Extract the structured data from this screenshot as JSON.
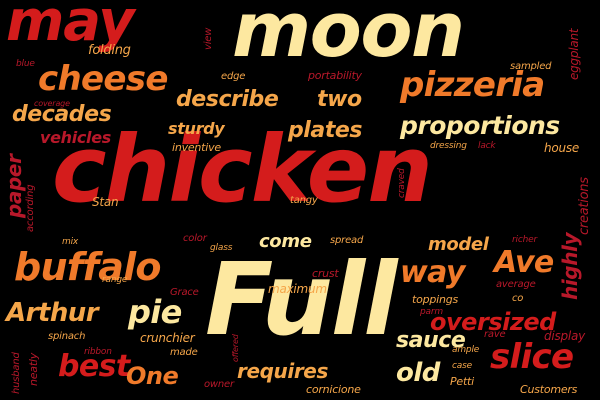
{
  "palette": {
    "red": "#d41c1c",
    "crimson": "#b8182a",
    "orange": "#f07a2a",
    "light_orange": "#f5a64a",
    "cream": "#fde8a0",
    "background": "#000000"
  },
  "words": [
    {
      "text": "may",
      "color": "red"
    },
    {
      "text": "moon",
      "color": "cream"
    },
    {
      "text": "chicken",
      "color": "red"
    },
    {
      "text": "Full",
      "color": "cream"
    },
    {
      "text": "cheese",
      "color": "orange"
    },
    {
      "text": "pizzeria",
      "color": "orange"
    },
    {
      "text": "buffalo",
      "color": "orange"
    },
    {
      "text": "describe",
      "color": "light_orange"
    },
    {
      "text": "two",
      "color": "light_orange"
    },
    {
      "text": "proportions",
      "color": "cream"
    },
    {
      "text": "decades",
      "color": "light_orange"
    },
    {
      "text": "vehicles",
      "color": "crimson"
    },
    {
      "text": "sturdy",
      "color": "light_orange"
    },
    {
      "text": "plates",
      "color": "light_orange"
    },
    {
      "text": "paper",
      "color": "crimson"
    },
    {
      "text": "way",
      "color": "orange"
    },
    {
      "text": "Ave",
      "color": "orange"
    },
    {
      "text": "highly",
      "color": "crimson"
    },
    {
      "text": "model",
      "color": "light_orange"
    },
    {
      "text": "come",
      "color": "cream"
    },
    {
      "text": "pie",
      "color": "cream"
    },
    {
      "text": "Arthur",
      "color": "light_orange"
    },
    {
      "text": "oversized",
      "color": "red"
    },
    {
      "text": "sauce",
      "color": "cream"
    },
    {
      "text": "slice",
      "color": "red"
    },
    {
      "text": "best",
      "color": "red"
    },
    {
      "text": "One",
      "color": "orange"
    },
    {
      "text": "old",
      "color": "cream"
    },
    {
      "text": "requires",
      "color": "light_orange"
    },
    {
      "text": "folding",
      "color": "light_orange"
    },
    {
      "text": "view",
      "color": "crimson"
    },
    {
      "text": "edge",
      "color": "light_orange"
    },
    {
      "text": "portability",
      "color": "crimson"
    },
    {
      "text": "sampled",
      "color": "light_orange"
    },
    {
      "text": "eggplant",
      "color": "crimson"
    },
    {
      "text": "blue",
      "color": "crimson"
    },
    {
      "text": "coverage",
      "color": "crimson"
    },
    {
      "text": "inventive",
      "color": "light_orange"
    },
    {
      "text": "dressing",
      "color": "light_orange"
    },
    {
      "text": "lack",
      "color": "crimson"
    },
    {
      "text": "house",
      "color": "light_orange"
    },
    {
      "text": "creations",
      "color": "crimson"
    },
    {
      "text": "according",
      "color": "crimson"
    },
    {
      "text": "Stan",
      "color": "light_orange"
    },
    {
      "text": "tangy",
      "color": "light_orange"
    },
    {
      "text": "craved",
      "color": "crimson"
    },
    {
      "text": "mix",
      "color": "light_orange"
    },
    {
      "text": "color",
      "color": "crimson"
    },
    {
      "text": "glass",
      "color": "light_orange"
    },
    {
      "text": "spread",
      "color": "light_orange"
    },
    {
      "text": "richer",
      "color": "crimson"
    },
    {
      "text": "range",
      "color": "light_orange"
    },
    {
      "text": "crust",
      "color": "crimson"
    },
    {
      "text": "maximum",
      "color": "light_orange"
    },
    {
      "text": "Grace",
      "color": "crimson"
    },
    {
      "text": "average",
      "color": "crimson"
    },
    {
      "text": "toppings",
      "color": "light_orange"
    },
    {
      "text": "co",
      "color": "light_orange"
    },
    {
      "text": "parm",
      "color": "crimson"
    },
    {
      "text": "rave",
      "color": "crimson"
    },
    {
      "text": "display",
      "color": "crimson"
    },
    {
      "text": "husband",
      "color": "crimson"
    },
    {
      "text": "neatly",
      "color": "crimson"
    },
    {
      "text": "spinach",
      "color": "light_orange"
    },
    {
      "text": "crunchier",
      "color": "light_orange"
    },
    {
      "text": "ribbon",
      "color": "crimson"
    },
    {
      "text": "made",
      "color": "light_orange"
    },
    {
      "text": "offered",
      "color": "crimson"
    },
    {
      "text": "ample",
      "color": "light_orange"
    },
    {
      "text": "case",
      "color": "light_orange"
    },
    {
      "text": "Petti",
      "color": "light_orange"
    },
    {
      "text": "owner",
      "color": "crimson"
    },
    {
      "text": "cornicione",
      "color": "light_orange"
    },
    {
      "text": "Customers",
      "color": "light_orange"
    }
  ]
}
